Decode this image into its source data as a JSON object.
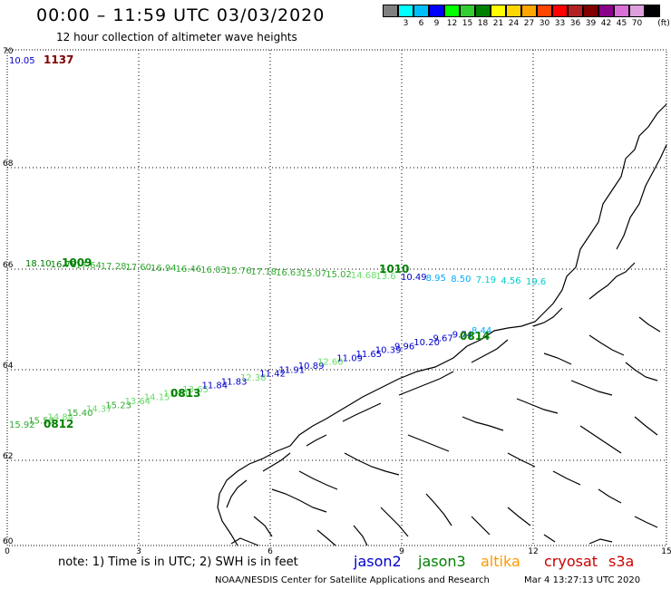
{
  "header": {
    "title": "00:00 – 11:59 UTC 03/03/2020",
    "subtitle": "12 hour collection of altimeter wave heights"
  },
  "legend": {
    "unit": "(ft)",
    "swatches": [
      {
        "color": "#808080",
        "label": ""
      },
      {
        "color": "#00ffff",
        "label": "3"
      },
      {
        "color": "#00bfff",
        "label": "6"
      },
      {
        "color": "#0000ff",
        "label": "9"
      },
      {
        "color": "#00ff00",
        "label": "12"
      },
      {
        "color": "#33cc33",
        "label": "15"
      },
      {
        "color": "#008000",
        "label": "18"
      },
      {
        "color": "#ffff00",
        "label": "21"
      },
      {
        "color": "#ffd700",
        "label": "24"
      },
      {
        "color": "#ffa500",
        "label": "27"
      },
      {
        "color": "#ff4500",
        "label": "30"
      },
      {
        "color": "#ff0000",
        "label": "33"
      },
      {
        "color": "#b22222",
        "label": "36"
      },
      {
        "color": "#800000",
        "label": "39"
      },
      {
        "color": "#8b008b",
        "label": "42"
      },
      {
        "color": "#da70d6",
        "label": "45"
      },
      {
        "color": "#dda0dd",
        "label": "70"
      },
      {
        "color": "#000000",
        "label": ""
      }
    ]
  },
  "axes": {
    "x_ticks": [
      "0",
      "3",
      "6",
      "9",
      "12",
      "15"
    ],
    "y_ticks": [
      "70",
      "68",
      "66",
      "64",
      "62",
      "60"
    ]
  },
  "tracks": {
    "top": {
      "labels": [
        {
          "text": "10.05",
          "color": "#0000cc"
        }
      ],
      "time": {
        "text": "1137",
        "color": "#800000"
      }
    },
    "upper": {
      "labels": [
        {
          "text": "18.10",
          "color": "#008000"
        },
        {
          "text": "16.78",
          "color": "#008000"
        },
        {
          "text": "17.64",
          "color": "#33aa33"
        },
        {
          "text": "17.28",
          "color": "#33aa33"
        },
        {
          "text": "17.60",
          "color": "#33aa33"
        },
        {
          "text": "16.94",
          "color": "#33aa33"
        },
        {
          "text": "16.46",
          "color": "#33aa33"
        },
        {
          "text": "16.03",
          "color": "#33aa33"
        },
        {
          "text": "15.76",
          "color": "#33aa33"
        },
        {
          "text": "17.18",
          "color": "#33aa33"
        },
        {
          "text": "16.63",
          "color": "#33aa33"
        },
        {
          "text": "15.07",
          "color": "#33aa33"
        },
        {
          "text": "15.02",
          "color": "#33aa33"
        },
        {
          "text": "14.68",
          "color": "#66dd66"
        },
        {
          "text": "13.6",
          "color": "#66dd66"
        },
        {
          "text": "10.49",
          "color": "#0000cc"
        },
        {
          "text": "8.95",
          "color": "#00aaff"
        },
        {
          "text": "8.50",
          "color": "#00aaff"
        },
        {
          "text": "7.19",
          "color": "#00cccc"
        },
        {
          "text": "4.56",
          "color": "#00cccc"
        },
        {
          "text": "19.6",
          "color": "#00cccc"
        }
      ],
      "times": [
        {
          "text": "1009",
          "color": "#008000"
        },
        {
          "text": "1010",
          "color": "#008000"
        }
      ]
    },
    "lower": {
      "labels": [
        {
          "text": "15.92",
          "color": "#33aa33"
        },
        {
          "text": "15.53",
          "color": "#33aa33"
        },
        {
          "text": "14.84",
          "color": "#66dd66"
        },
        {
          "text": "15.40",
          "color": "#33aa33"
        },
        {
          "text": "14.37",
          "color": "#66dd66"
        },
        {
          "text": "15.23",
          "color": "#33aa33"
        },
        {
          "text": "13.64",
          "color": "#66dd66"
        },
        {
          "text": "14.15",
          "color": "#66dd66"
        },
        {
          "text": "13.61",
          "color": "#66dd66"
        },
        {
          "text": "13.65",
          "color": "#66dd66"
        },
        {
          "text": "11.84",
          "color": "#0000cc"
        },
        {
          "text": "11.83",
          "color": "#0000cc"
        },
        {
          "text": "12.38",
          "color": "#66dd66"
        },
        {
          "text": "11.42",
          "color": "#0000cc"
        },
        {
          "text": "11.91",
          "color": "#0000cc"
        },
        {
          "text": "10.89",
          "color": "#0000cc"
        },
        {
          "text": "12.60",
          "color": "#66dd66"
        },
        {
          "text": "11.09",
          "color": "#0000cc"
        },
        {
          "text": "11.65",
          "color": "#0000cc"
        },
        {
          "text": "10.39",
          "color": "#0000cc"
        },
        {
          "text": "9.96",
          "color": "#0000cc"
        },
        {
          "text": "10.20",
          "color": "#0000cc"
        },
        {
          "text": "9.67",
          "color": "#0000cc"
        },
        {
          "text": "9.74",
          "color": "#0000cc"
        },
        {
          "text": "8.44",
          "color": "#00aaff"
        }
      ],
      "times": [
        {
          "text": "0812",
          "color": "#008000"
        },
        {
          "text": "0813",
          "color": "#008000"
        },
        {
          "text": "0814",
          "color": "#008000"
        }
      ]
    }
  },
  "footer": {
    "note": "note: 1) Time is in UTC; 2) SWH is in feet",
    "satellites": [
      {
        "name": "jason2",
        "color": "#0000cc"
      },
      {
        "name": "jason3",
        "color": "#008000"
      },
      {
        "name": "altika",
        "color": "#ff9900"
      },
      {
        "name": "cryosat",
        "color": "#cc0000"
      },
      {
        "name": "s3a",
        "color": "#cc0000"
      }
    ],
    "credit": "NOAA/NESDIS Center for Satellite Applications and Research",
    "timestamp": "Mar  4 13:27:13 UTC 2020"
  }
}
